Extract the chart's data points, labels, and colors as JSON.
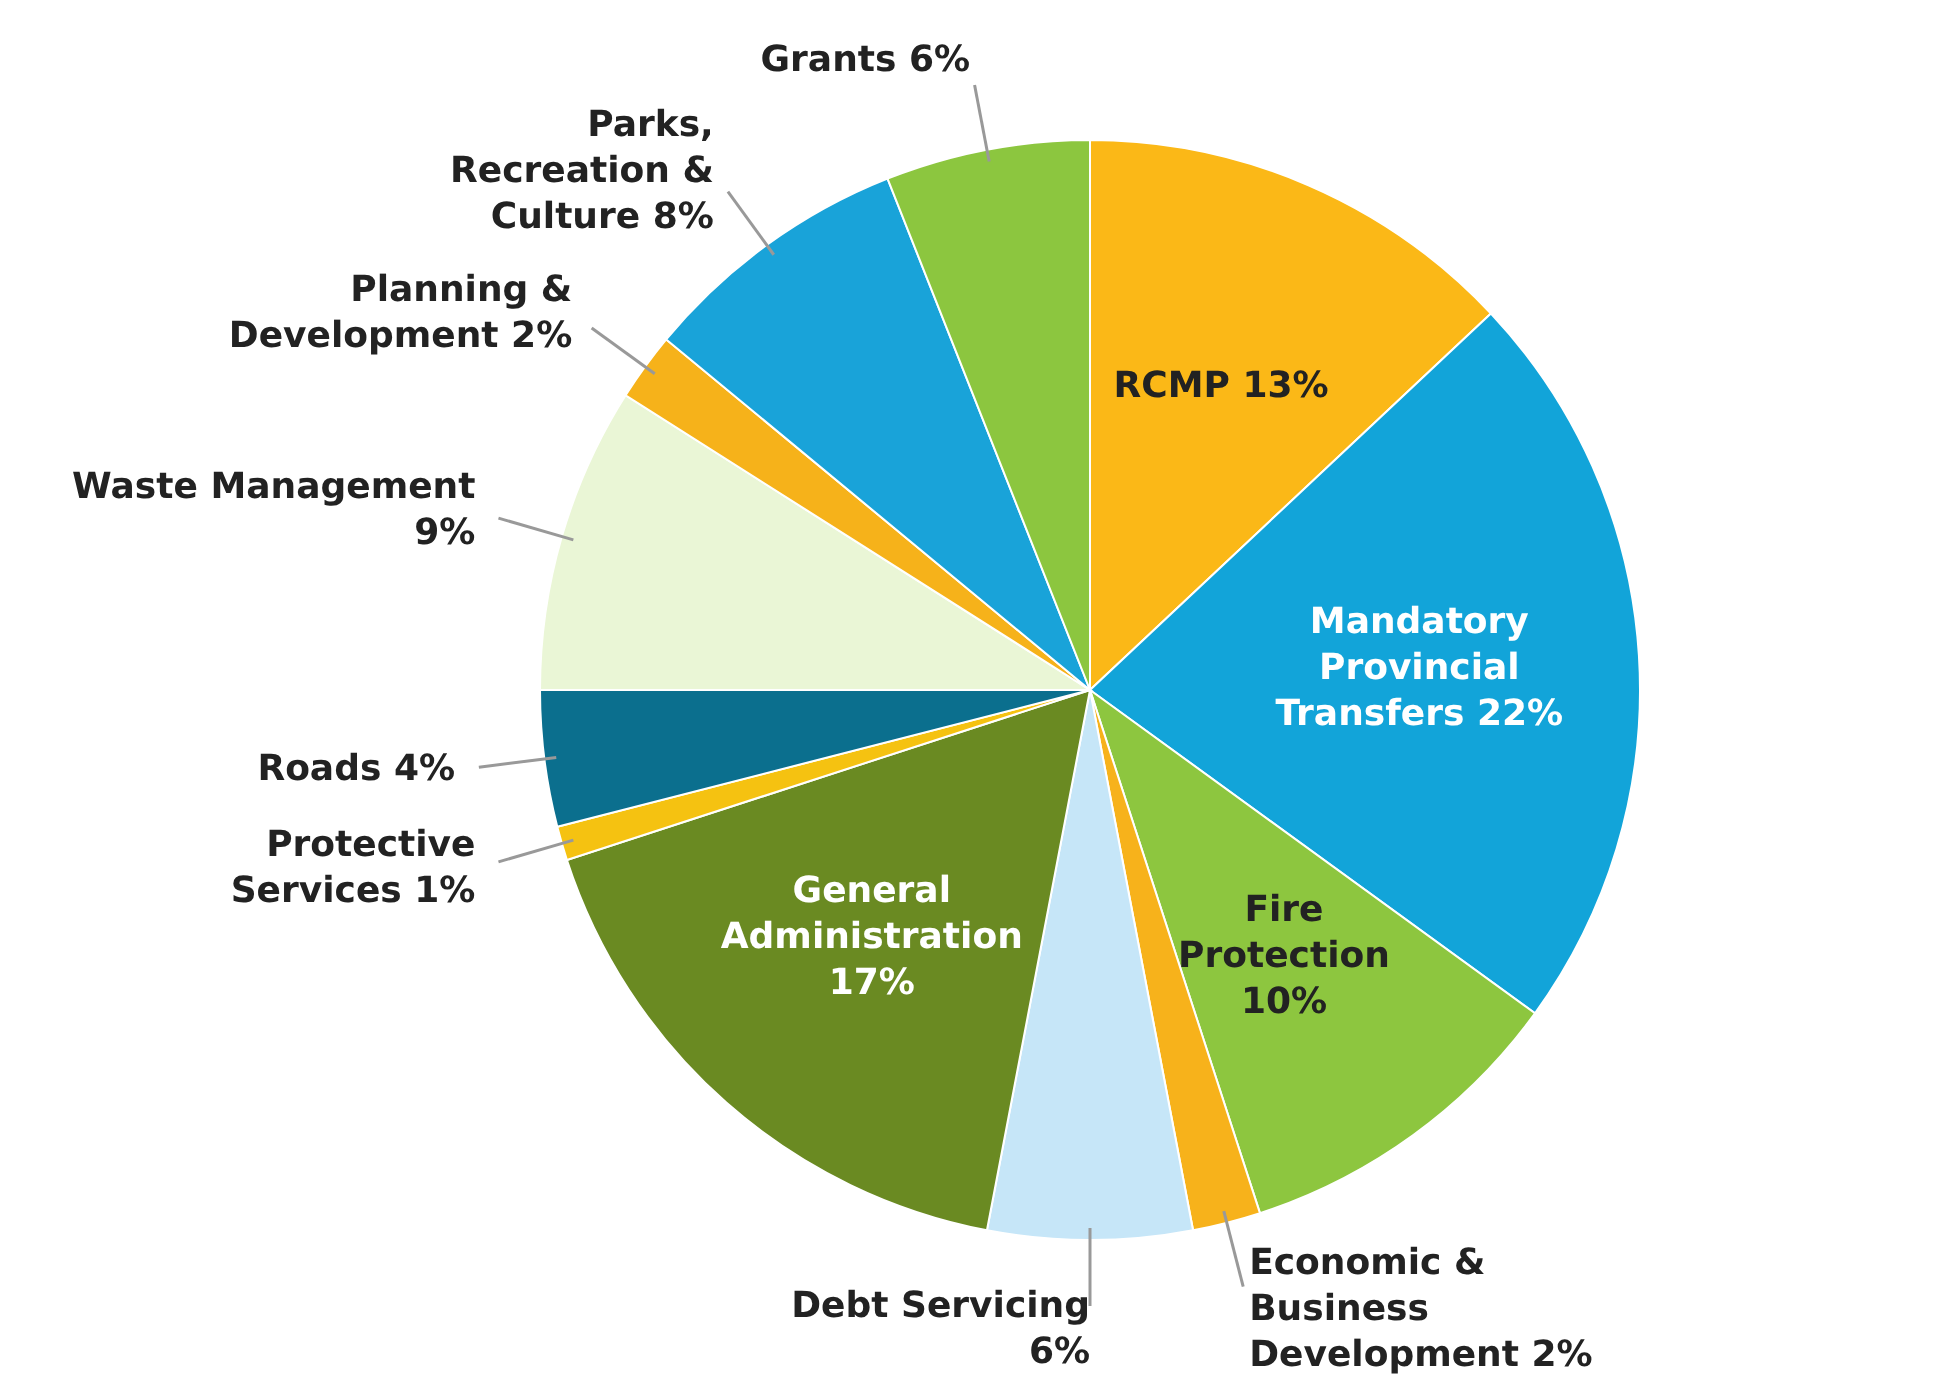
{
  "chart_data": {
    "type": "pie",
    "categories": [
      "RCMP",
      "Mandatory Provincial Transfers",
      "Fire Protection",
      "Economic & Business Development",
      "Debt Servicing",
      "General Administration",
      "Protective Services ",
      "Roads",
      "Waste Management",
      "Planning & Development",
      "Parks, Recreation & Culture",
      "Grants"
    ],
    "values": [
      13,
      22,
      10,
      2,
      6,
      17,
      1,
      4,
      9,
      2,
      8,
      6
    ],
    "value_labels": [
      "13%",
      "22%",
      "10%",
      "2%",
      "6%",
      "17%",
      "1%",
      "4%",
      "9%",
      "2%",
      "8%",
      "6%"
    ],
    "colors": [
      "#fbb817",
      "#12a4d9",
      "#8dc63f",
      "#f7b21b",
      "#c6e6f8",
      "#6a8a22",
      "#f5c211",
      "#0b6f8e",
      "#eaf6d6",
      "#f6b21a",
      "#19a3d9",
      "#8cc63f"
    ]
  }
}
